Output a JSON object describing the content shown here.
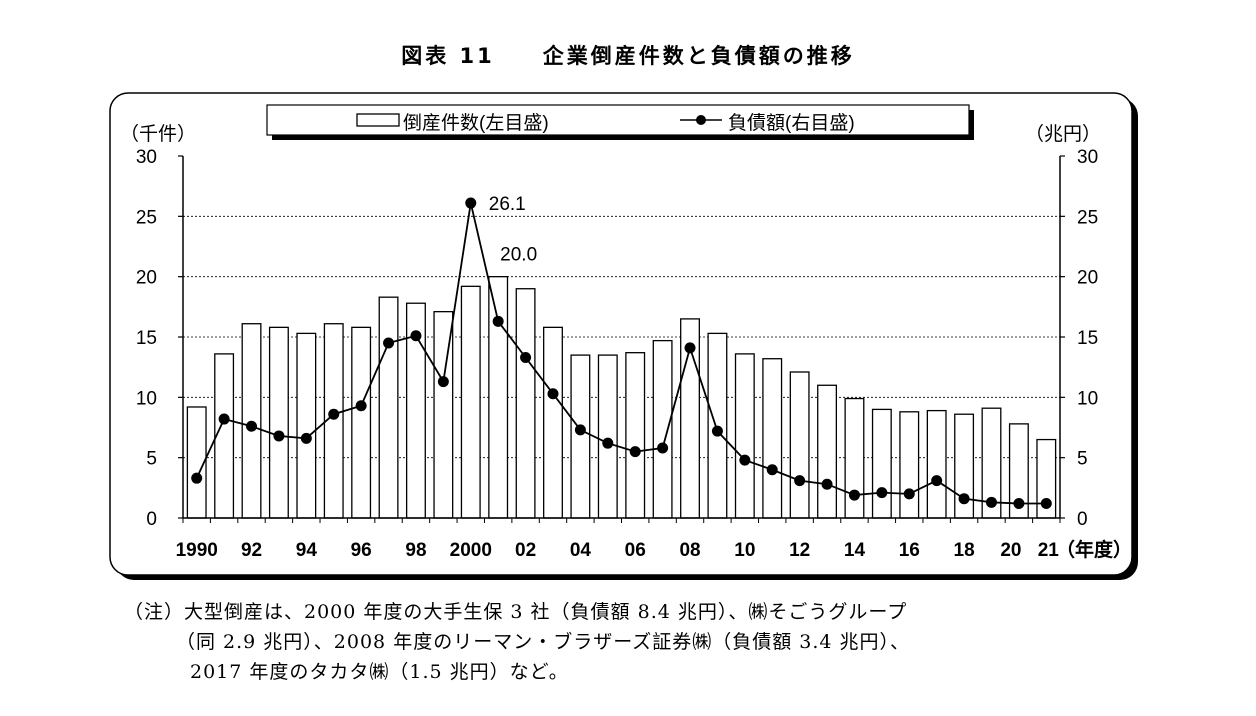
{
  "figure_title": "図表 11　　企業倒産件数と負債額の推移",
  "chart_data": {
    "type": "bar+line",
    "title": "企業倒産件数と負債額の推移",
    "left_unit": "（千件）",
    "right_unit": "（兆円）",
    "x_unit": "（年度）",
    "ylim_left": [
      0,
      30
    ],
    "ylim_right": [
      0,
      30
    ],
    "yticks": [
      "0",
      "5",
      "10",
      "15",
      "20",
      "25",
      "30"
    ],
    "grid": true,
    "legend": {
      "placement": "top",
      "bar_label": "倒産件数(左目盛)",
      "line_label": "負債額(右目盛)"
    },
    "x": [
      1990,
      1991,
      1992,
      1993,
      1994,
      1995,
      1996,
      1997,
      1998,
      1999,
      2000,
      2001,
      2002,
      2003,
      2004,
      2005,
      2006,
      2007,
      2008,
      2009,
      2010,
      2011,
      2012,
      2013,
      2014,
      2015,
      2016,
      2017,
      2018,
      2019,
      2020,
      2021
    ],
    "x_tick_labels": [
      "1990",
      "",
      "92",
      "",
      "94",
      "",
      "96",
      "",
      "98",
      "",
      "2000",
      "",
      "02",
      "",
      "04",
      "",
      "06",
      "",
      "08",
      "",
      "10",
      "",
      "12",
      "",
      "14",
      "",
      "16",
      "",
      "18",
      "",
      "20",
      "21"
    ],
    "series": [
      {
        "name": "倒産件数(左目盛)",
        "type": "bar",
        "axis": "left",
        "values": [
          9.2,
          13.6,
          16.1,
          15.8,
          15.3,
          16.1,
          15.8,
          18.3,
          17.8,
          17.1,
          19.2,
          20.0,
          19.0,
          15.8,
          13.5,
          13.5,
          13.7,
          14.7,
          16.5,
          15.3,
          13.6,
          13.2,
          12.1,
          11.0,
          9.9,
          9.0,
          8.8,
          8.9,
          8.6,
          9.1,
          7.8,
          6.5
        ]
      },
      {
        "name": "負債額(右目盛)",
        "type": "line",
        "axis": "right",
        "values": [
          3.3,
          8.2,
          7.6,
          6.8,
          6.6,
          8.6,
          9.3,
          14.5,
          15.1,
          11.3,
          26.1,
          16.3,
          13.3,
          10.3,
          7.3,
          6.2,
          5.5,
          5.8,
          14.1,
          7.2,
          4.8,
          4.0,
          3.1,
          2.8,
          1.9,
          2.1,
          2.0,
          3.1,
          1.6,
          1.3,
          1.2,
          1.2
        ]
      }
    ],
    "annotations": [
      {
        "text": "26.1",
        "x": 2000,
        "y": 26.1,
        "series": "line"
      },
      {
        "text": "20.0",
        "x": 2001,
        "y": 20.0,
        "series": "bar"
      }
    ]
  },
  "notes": [
    "（注）大型倒産は、2000 年度の大手生保 3 社（負債額 8.4 兆円）、㈱そごうグループ",
    "（同 2.9 兆円）、2008 年度のリーマン・ブラザーズ証券㈱（負債額 3.4 兆円）、",
    "2017 年度のタカタ㈱（1.5 兆円）など。"
  ]
}
